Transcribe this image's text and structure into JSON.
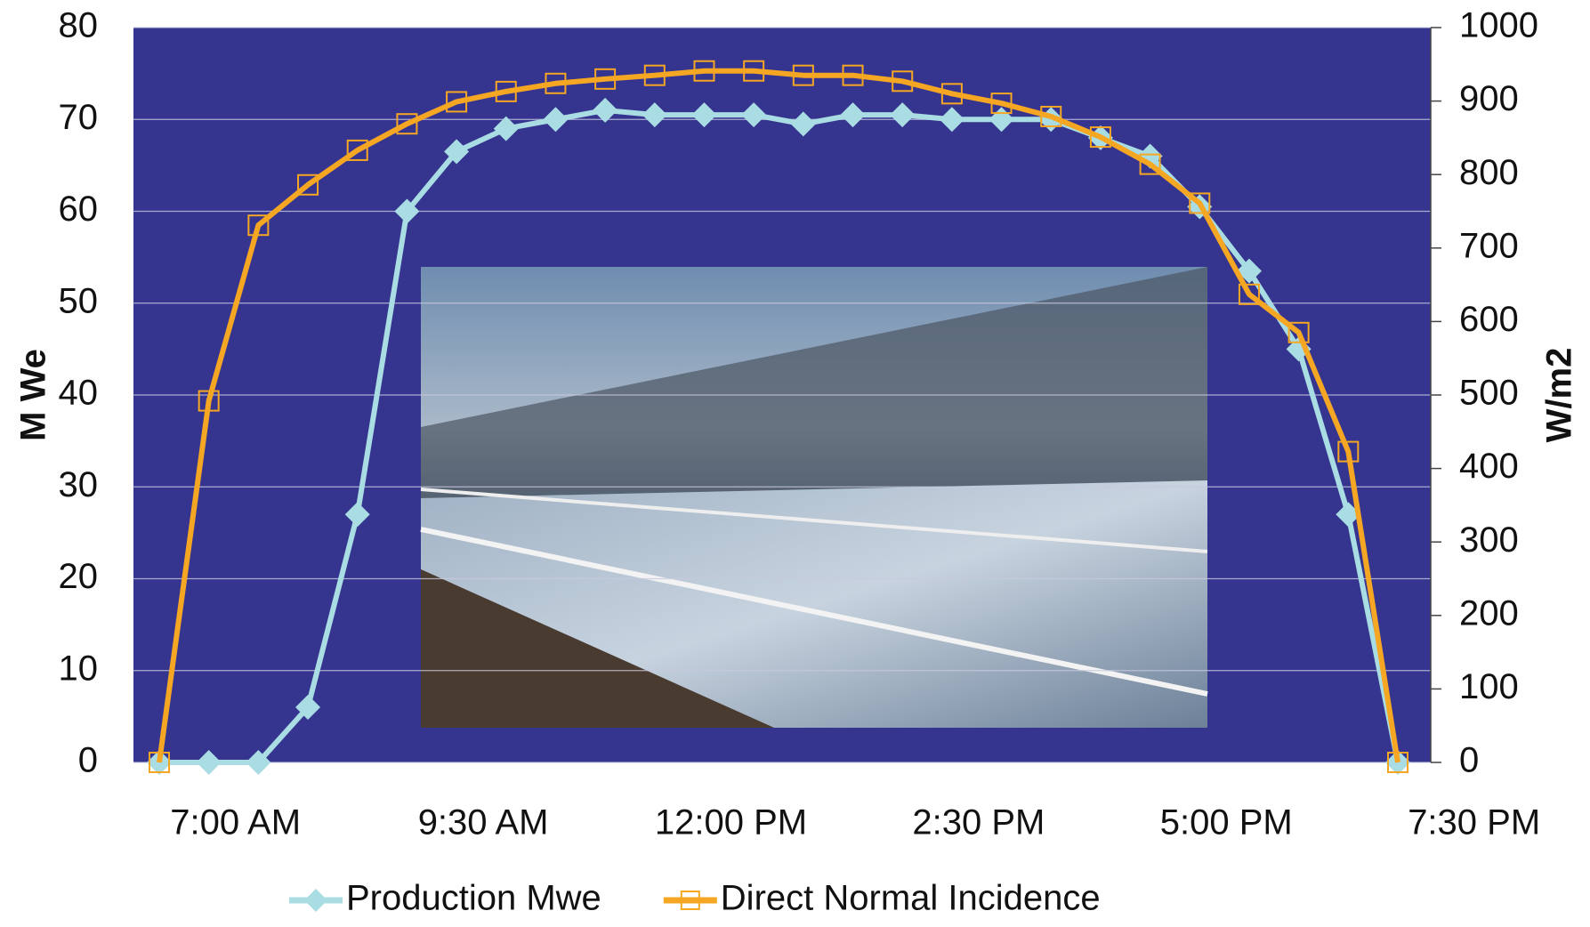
{
  "chart_data": {
    "type": "line",
    "y_label": "M We",
    "y2_label": "W/m2",
    "categories": [
      null,
      "7:00 AM",
      null,
      null,
      null,
      null,
      "9:30 AM",
      null,
      null,
      null,
      null,
      "12:00 PM",
      null,
      null,
      null,
      null,
      "2:30 PM",
      null,
      null,
      null,
      null,
      "5:00 PM",
      null,
      null,
      null,
      null,
      "7:30 PM"
    ],
    "series": [
      {
        "name": "Production Mwe",
        "color": "#a9dde3",
        "marker": "diamond",
        "values": [
          0,
          0,
          0,
          6,
          27,
          60,
          66.5,
          69,
          70,
          71,
          70.5,
          70.5,
          70.5,
          69.5,
          70.5,
          70.5,
          70,
          70,
          70,
          68,
          66,
          60.5,
          53.5,
          45,
          27,
          0,
          null
        ]
      },
      {
        "name": "Direct Normal Incidence",
        "color": "#f5a623",
        "marker": "square",
        "axis": "y2",
        "values": [
          0,
          492,
          731,
          786,
          833,
          869,
          899,
          913,
          924,
          930,
          935,
          941,
          941,
          935,
          935,
          927,
          910,
          897,
          879,
          851,
          814,
          761,
          637,
          585,
          423,
          0,
          null
        ]
      }
    ],
    "ylim": [
      0,
      80
    ],
    "yticks": [
      0,
      10,
      20,
      30,
      40,
      50,
      60,
      70,
      80
    ],
    "y2lim": [
      0,
      1000
    ],
    "y2ticks": [
      0,
      100,
      200,
      300,
      400,
      500,
      600,
      700,
      800,
      900,
      1000
    ],
    "grid": true,
    "background": "#35358f",
    "legend": "bottom"
  }
}
